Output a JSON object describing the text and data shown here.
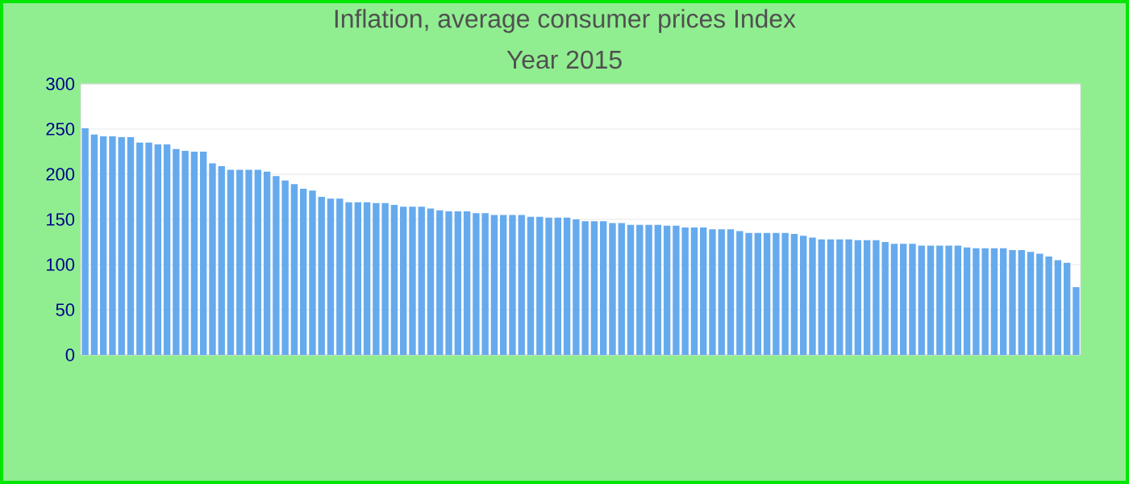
{
  "chart_data": {
    "type": "bar",
    "title": "Inflation, average consumer prices  Index",
    "subtitle": "Year 2015",
    "categories": [
      null,
      null,
      null,
      null,
      null,
      null,
      null,
      null,
      null,
      null,
      null,
      null,
      null,
      null,
      null,
      null,
      null,
      null,
      null,
      null,
      null,
      null,
      null,
      null,
      null,
      null,
      null,
      null,
      null,
      null,
      null,
      null,
      null,
      null,
      null,
      null,
      null,
      null,
      null,
      null,
      null,
      null,
      null,
      null,
      null,
      null,
      null,
      null,
      null,
      null,
      null,
      null,
      null,
      null,
      null,
      null,
      null,
      null,
      null,
      null,
      null,
      null,
      null,
      null,
      null,
      null,
      null,
      null,
      null,
      null,
      null,
      null,
      null,
      null,
      null,
      null,
      null,
      null,
      null,
      null,
      null,
      null,
      null,
      null,
      null,
      null,
      null,
      null,
      null,
      null,
      null,
      null,
      null,
      null,
      null,
      null,
      null,
      null,
      null,
      null,
      null,
      null,
      null,
      null,
      null,
      null,
      null,
      null,
      null,
      null
    ],
    "values": [
      251,
      244,
      242,
      242,
      241,
      241,
      235,
      235,
      233,
      233,
      228,
      226,
      225,
      225,
      212,
      209,
      205,
      205,
      205,
      205,
      203,
      198,
      193,
      189,
      184,
      182,
      175,
      173,
      173,
      169,
      169,
      169,
      168,
      168,
      166,
      164,
      164,
      164,
      162,
      160,
      159,
      159,
      159,
      157,
      157,
      155,
      155,
      155,
      155,
      153,
      153,
      152,
      152,
      152,
      150,
      148,
      148,
      148,
      146,
      146,
      144,
      144,
      144,
      144,
      143,
      143,
      141,
      141,
      141,
      139,
      139,
      139,
      137,
      135,
      135,
      135,
      135,
      135,
      134,
      132,
      130,
      128,
      128,
      128,
      128,
      127,
      127,
      127,
      125,
      123,
      123,
      123,
      121,
      121,
      121,
      121,
      121,
      119,
      118,
      118,
      118,
      118,
      116,
      116,
      114,
      112,
      109,
      105,
      102,
      75
    ],
    "color": "#66aaee",
    "ylim": [
      0,
      300
    ],
    "yticks": [
      0,
      50,
      100,
      150,
      200,
      250,
      300
    ],
    "grid": "y"
  }
}
